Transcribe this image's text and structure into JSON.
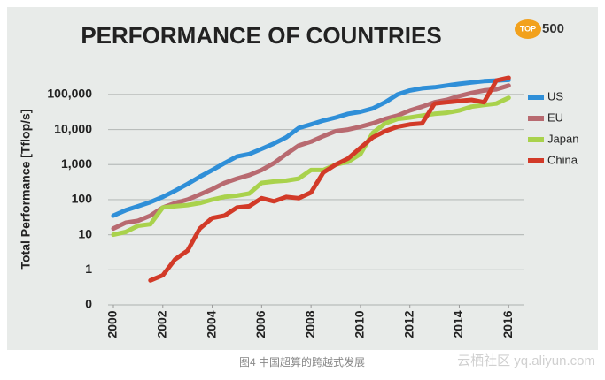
{
  "chart_data": {
    "type": "line",
    "title": "PERFORMANCE OF COUNTRIES",
    "y_label": "Total Performance [Tflop/s]",
    "log_y": true,
    "grid": true,
    "legend": "right",
    "x": [
      2000,
      2000.5,
      2001,
      2001.5,
      2002,
      2002.5,
      2003,
      2003.5,
      2004,
      2004.5,
      2005,
      2005.5,
      2006,
      2006.5,
      2007,
      2007.5,
      2008,
      2008.5,
      2009,
      2009.5,
      2010,
      2010.5,
      2011,
      2011.5,
      2012,
      2012.5,
      2013,
      2013.5,
      2014,
      2014.5,
      2015,
      2015.5,
      2016
    ],
    "series": [
      {
        "name": "US",
        "color": "#2f8fd8",
        "values": [
          35,
          50,
          65,
          85,
          120,
          180,
          280,
          450,
          700,
          1100,
          1700,
          2000,
          2800,
          4000,
          6000,
          11000,
          14000,
          18000,
          22000,
          28000,
          32000,
          40000,
          60000,
          100000,
          130000,
          150000,
          160000,
          180000,
          200000,
          220000,
          240000,
          250000,
          260000
        ]
      },
      {
        "name": "EU",
        "color": "#b86a70",
        "values": [
          15,
          22,
          25,
          35,
          60,
          80,
          100,
          140,
          200,
          300,
          400,
          500,
          700,
          1100,
          2000,
          3500,
          4500,
          6500,
          9000,
          10000,
          12000,
          15000,
          20000,
          25000,
          35000,
          45000,
          60000,
          70000,
          90000,
          110000,
          130000,
          140000,
          180000
        ]
      },
      {
        "name": "Japan",
        "color": "#a9d24c",
        "values": [
          10,
          12,
          18,
          20,
          60,
          65,
          70,
          80,
          100,
          120,
          130,
          150,
          300,
          330,
          350,
          400,
          700,
          700,
          1000,
          1200,
          2000,
          8000,
          15000,
          20000,
          22000,
          25000,
          28000,
          30000,
          35000,
          45000,
          50000,
          55000,
          80000
        ]
      },
      {
        "name": "China",
        "color": "#d23a28",
        "values": [
          null,
          null,
          null,
          0.5,
          0.7,
          2,
          3.5,
          15,
          30,
          35,
          60,
          65,
          110,
          90,
          120,
          110,
          160,
          600,
          1000,
          1500,
          3000,
          6000,
          9000,
          12000,
          14000,
          15000,
          55000,
          60000,
          65000,
          70000,
          60000,
          250000,
          300000
        ]
      }
    ],
    "xlim": [
      2000,
      2016.6
    ],
    "xticks": [
      2000,
      2002,
      2004,
      2006,
      2008,
      2010,
      2012,
      2014,
      2016
    ],
    "ylim": [
      0.1,
      400000
    ],
    "yticks": [
      {
        "value": 0.1,
        "label": "0"
      },
      1,
      10,
      100,
      {
        "value": 1000,
        "label": "1,000"
      },
      {
        "value": 10000,
        "label": "10,000"
      },
      {
        "value": 100000,
        "label": "100,000"
      }
    ]
  },
  "logo": {
    "top": "TOP",
    "num": "500"
  },
  "caption": "图4 中国超算的跨越式发展",
  "watermark": "云栖社区 yq.aliyun.com"
}
